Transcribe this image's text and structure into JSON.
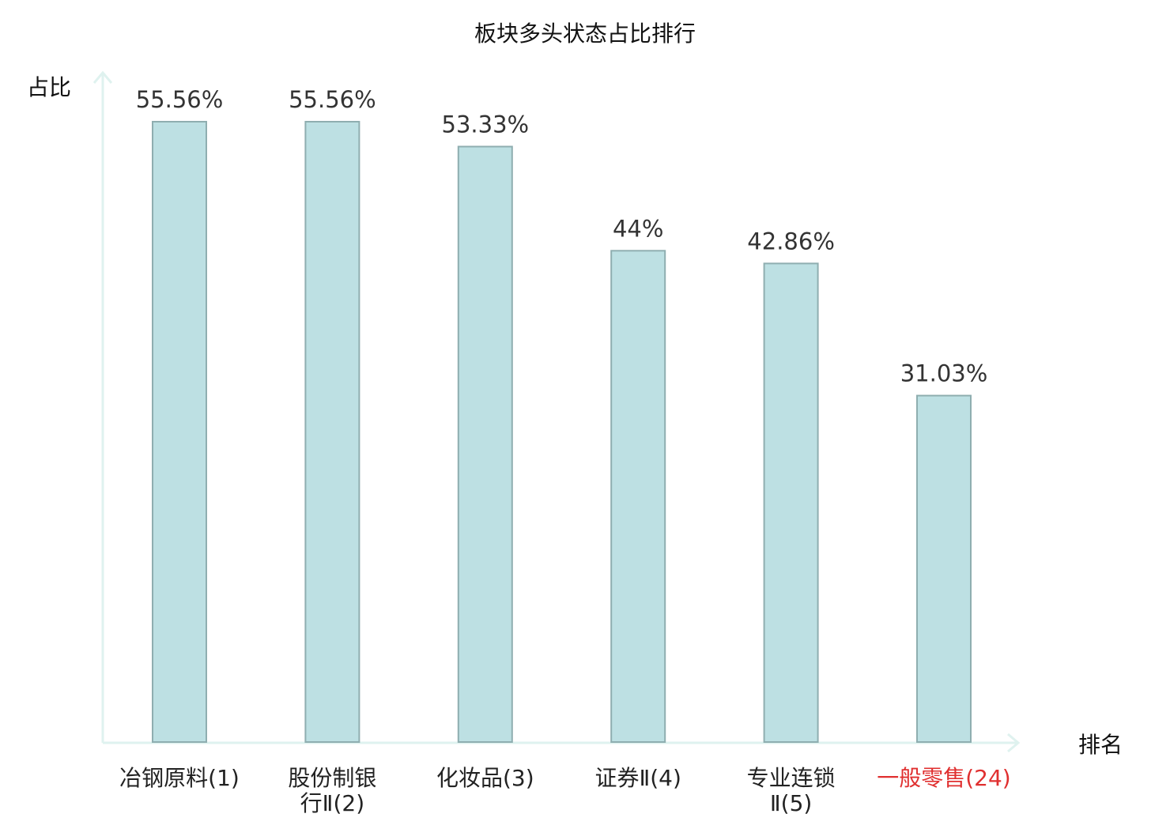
{
  "chart_data": {
    "type": "bar",
    "title": "板块多头状态占比排行",
    "ylabel": "占比",
    "xlabel": "排名",
    "categories": [
      [
        "冶钢原料(1)"
      ],
      [
        "股份制银",
        "行Ⅱ(2)"
      ],
      [
        "化妆品(3)"
      ],
      [
        "证券Ⅱ(4)"
      ],
      [
        "专业连锁",
        "Ⅱ(5)"
      ],
      [
        "一般零售(24)"
      ]
    ],
    "values": [
      55.56,
      55.56,
      53.33,
      44,
      42.86,
      31.03
    ],
    "value_labels": [
      "55.56%",
      "55.56%",
      "53.33%",
      "44%",
      "42.86%",
      "31.03%"
    ],
    "highlighted_category_index": 5,
    "ylim": [
      0,
      60
    ],
    "grid": false,
    "legend": "none",
    "colors": {
      "bar_fill": "#bde0e3",
      "bar_stroke": "#8faeb0",
      "axis": "#dff2ef",
      "value_label": "#333333",
      "category_label": "#222222",
      "highlight_label": "#e03030",
      "title": "#111111"
    }
  }
}
